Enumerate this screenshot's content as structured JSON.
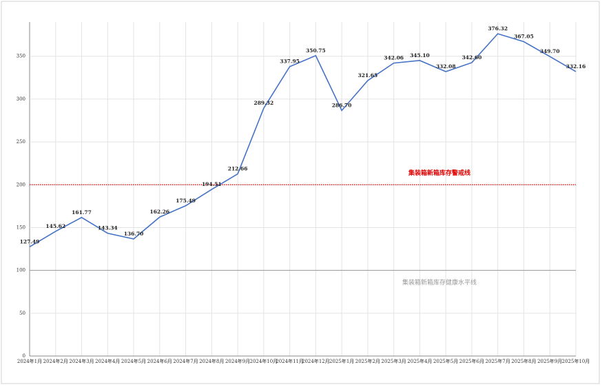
{
  "chart_data": {
    "type": "line",
    "categories": [
      "2024年1月",
      "2024年2月",
      "2024年3月",
      "2024年4月",
      "2024年5月",
      "2024年6月",
      "2024年7月",
      "2024年8月",
      "2024年9月",
      "2024年10月",
      "2024年11月",
      "2024年12月",
      "2025年1月",
      "2025年2月",
      "2025年3月",
      "2025年4月",
      "2025年5月",
      "2025年6月",
      "2025年7月",
      "2025年8月",
      "2025年9月",
      "2025年10月"
    ],
    "values": [
      127.49,
      145.62,
      161.77,
      143.34,
      136.7,
      162.26,
      175.49,
      194.51,
      212.66,
      289.32,
      337.95,
      350.75,
      286.7,
      321.65,
      342.06,
      345.1,
      332.08,
      342.6,
      376.32,
      367.05,
      349.7,
      332.16
    ],
    "value_labels": [
      "127.49",
      "145.62",
      "161.77",
      "143.34",
      "136.70",
      "162.26",
      "175.49",
      "194.51",
      "212.66",
      "289.32",
      "337.95",
      "350.75",
      "286.70",
      "321.65",
      "342.06",
      "345.10",
      "332.08",
      "342.60",
      "376.32",
      "367.05",
      "349.70",
      "332.16"
    ],
    "color": "#4472c4",
    "ylim": [
      0,
      390
    ],
    "yticks": [
      0,
      50,
      100,
      150,
      200,
      250,
      300,
      350
    ],
    "grid": true,
    "reference_lines": [
      {
        "value": 200,
        "label": "集装箱新箱库存警戒线",
        "color": "#e00000"
      },
      {
        "value": 100,
        "label": "集装箱新箱库存健康水平线",
        "color": "#999999"
      }
    ]
  }
}
